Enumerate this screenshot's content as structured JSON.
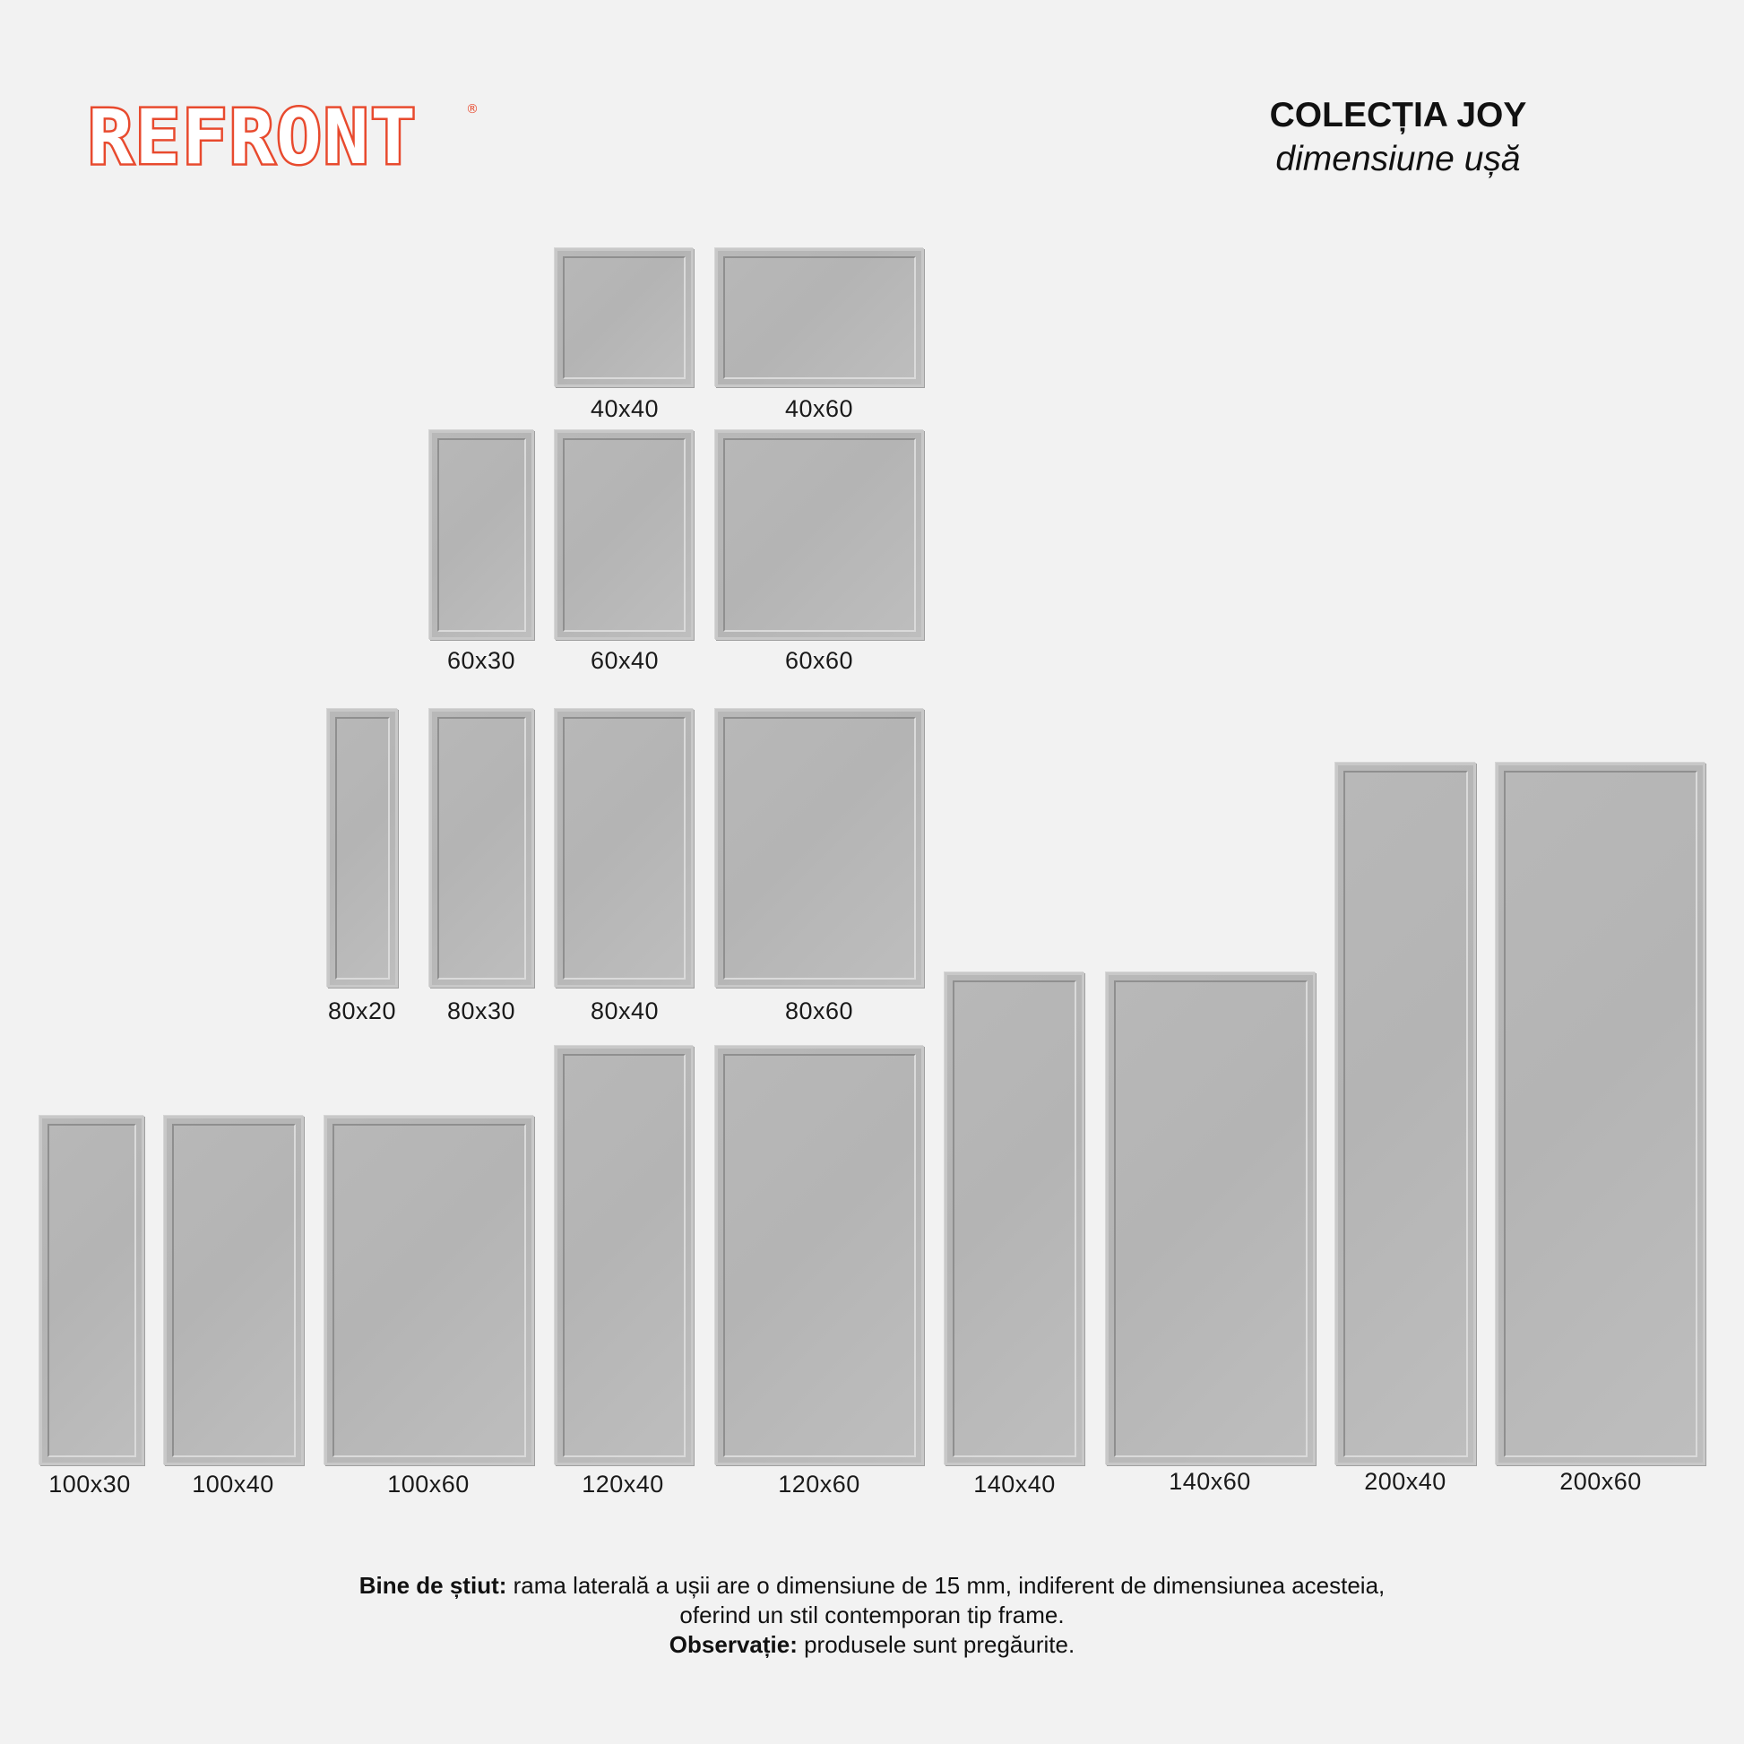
{
  "brand": {
    "name": "REFRONT",
    "registered_mark": "®",
    "color": "#e84a2e"
  },
  "heading": {
    "title": "COLECȚIA JOY",
    "subtitle": "dimensiune ușă"
  },
  "colors": {
    "background": "#f2f2f2",
    "door_fill": "#b8b8b8",
    "door_frame": "#c8c8c8",
    "text": "#111111"
  },
  "doors": [
    {
      "label": "40x40"
    },
    {
      "label": "40x60"
    },
    {
      "label": "60x30"
    },
    {
      "label": "60x40"
    },
    {
      "label": "60x60"
    },
    {
      "label": "80x20"
    },
    {
      "label": "80x30"
    },
    {
      "label": "80x40"
    },
    {
      "label": "80x60"
    },
    {
      "label": "100x30"
    },
    {
      "label": "100x40"
    },
    {
      "label": "100x60"
    },
    {
      "label": "120x40"
    },
    {
      "label": "120x60"
    },
    {
      "label": "140x40"
    },
    {
      "label": "140x60"
    },
    {
      "label": "200x40"
    },
    {
      "label": "200x60"
    }
  ],
  "note": {
    "label_1": "Bine de știut:",
    "text_1": " rama laterală a ușii are o dimensiune de 15 mm, indiferent de dimensiunea acesteia,",
    "text_2": "oferind un stil contemporan tip frame.",
    "label_2": "Observație:",
    "text_3": " produsele sunt pregăurite."
  }
}
